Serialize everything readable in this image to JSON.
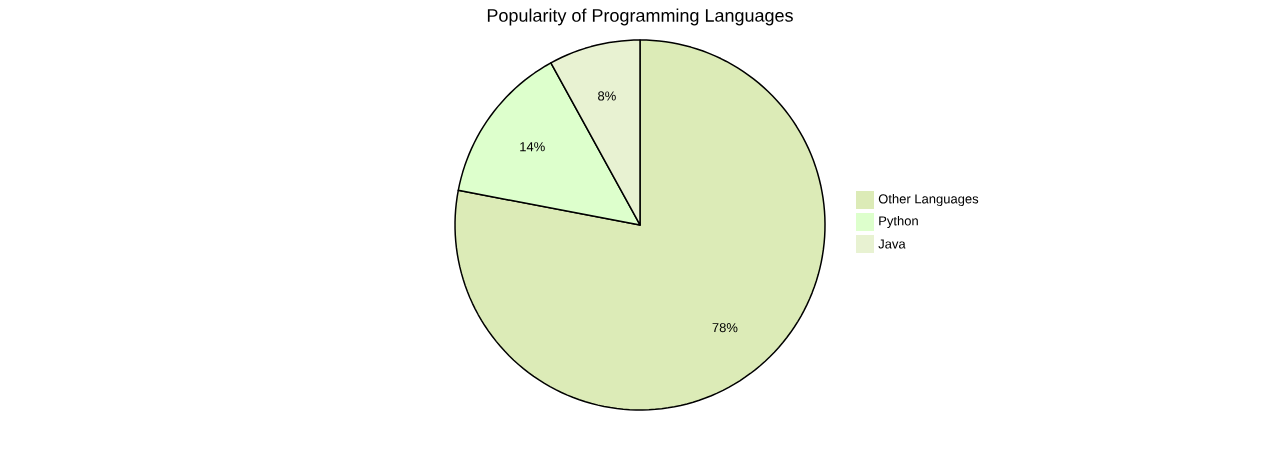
{
  "chart_data": {
    "type": "pie",
    "title": "Popularity of Programming Languages",
    "categories": [
      "Other Languages",
      "Python",
      "Java"
    ],
    "values": [
      78,
      14,
      8
    ],
    "colors": [
      "#dcebb7",
      "#ddffcc",
      "#e8f2d2"
    ],
    "value_labels": [
      "78%",
      "14%",
      "8%"
    ],
    "legend": "right"
  }
}
